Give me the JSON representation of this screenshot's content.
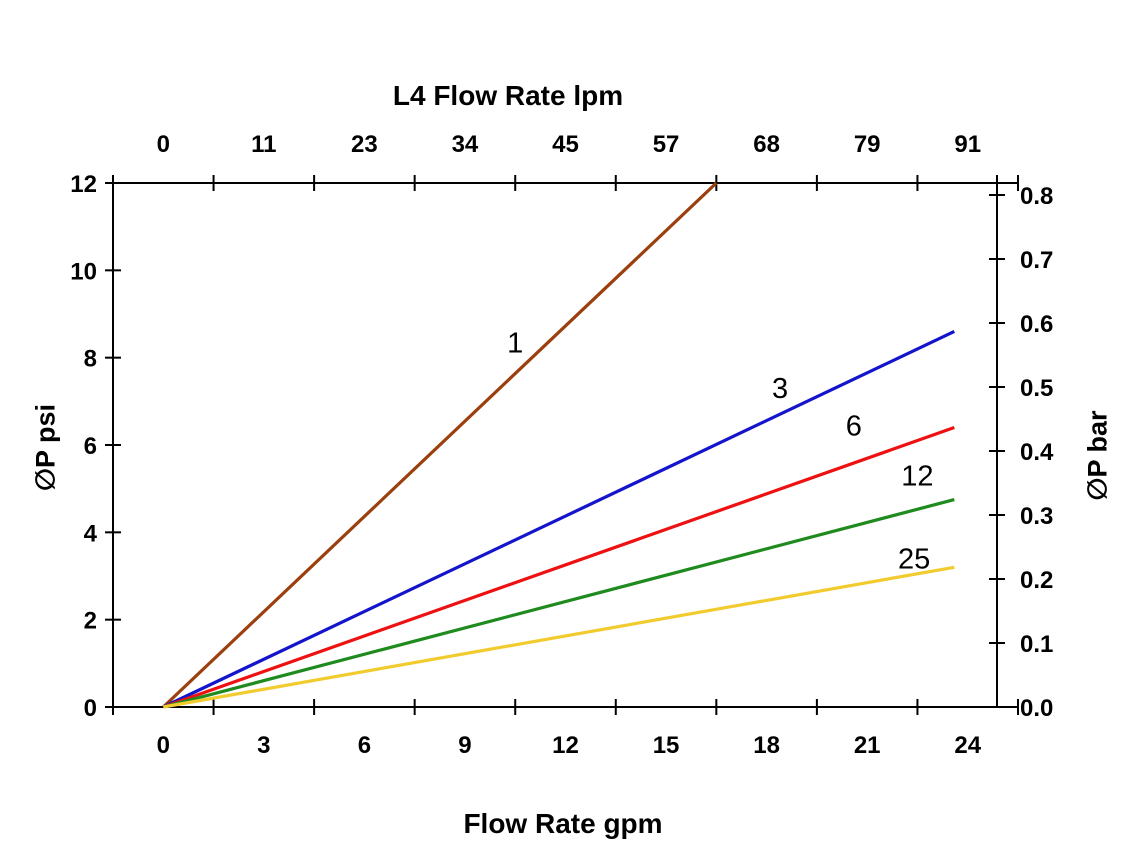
{
  "chart_data": {
    "type": "line",
    "top_axis": {
      "title": "L4 Flow Rate lpm",
      "tick_labels": [
        "0",
        "11",
        "23",
        "34",
        "45",
        "57",
        "68",
        "79",
        "91"
      ]
    },
    "bottom_axis": {
      "title": "Flow Rate gpm",
      "tick_labels": [
        "0",
        "3",
        "6",
        "9",
        "12",
        "15",
        "18",
        "21",
        "24"
      ]
    },
    "left_axis": {
      "title": "∅P psi",
      "tick_values": [
        12,
        10,
        8,
        6,
        4,
        2,
        0
      ],
      "range_psi": [
        0,
        12
      ]
    },
    "right_axis": {
      "title": "∅P bar",
      "tick_values": [
        "0.8",
        "0.7",
        "0.6",
        "0.5",
        "0.4",
        "0.3",
        "0.2",
        "0.1",
        "0.0"
      ],
      "range_bar": [
        0,
        0.8
      ]
    },
    "x_range_gpm": [
      0,
      24
    ],
    "grid": "off",
    "legend": "inline-labels",
    "axis_color": "#000000",
    "series": [
      {
        "label": "1",
        "color": "#9C3F0F",
        "x_gpm": [
          0,
          16.5
        ],
        "y_psi": [
          0,
          12.0
        ]
      },
      {
        "label": "3",
        "color": "#1414CC",
        "x_gpm": [
          0,
          23.6
        ],
        "y_psi": [
          0,
          8.6
        ]
      },
      {
        "label": "6",
        "color": "#EE1111",
        "x_gpm": [
          0,
          23.6
        ],
        "y_psi": [
          0,
          6.4
        ]
      },
      {
        "label": "12",
        "color": "#1F8B1F",
        "x_gpm": [
          0,
          23.6
        ],
        "y_psi": [
          0,
          4.75
        ]
      },
      {
        "label": "25",
        "color": "#F2CB2E",
        "x_gpm": [
          0,
          23.6
        ],
        "y_psi": [
          0,
          3.2
        ]
      }
    ],
    "series_labels": [
      {
        "text": "1",
        "x_gpm": 10.5,
        "y_psi": 8.35
      },
      {
        "text": "3",
        "x_gpm": 18.4,
        "y_psi": 7.3
      },
      {
        "text": "6",
        "x_gpm": 20.6,
        "y_psi": 6.45
      },
      {
        "text": "12",
        "x_gpm": 22.5,
        "y_psi": 5.3
      },
      {
        "text": "25",
        "x_gpm": 22.4,
        "y_psi": 3.4
      }
    ]
  }
}
